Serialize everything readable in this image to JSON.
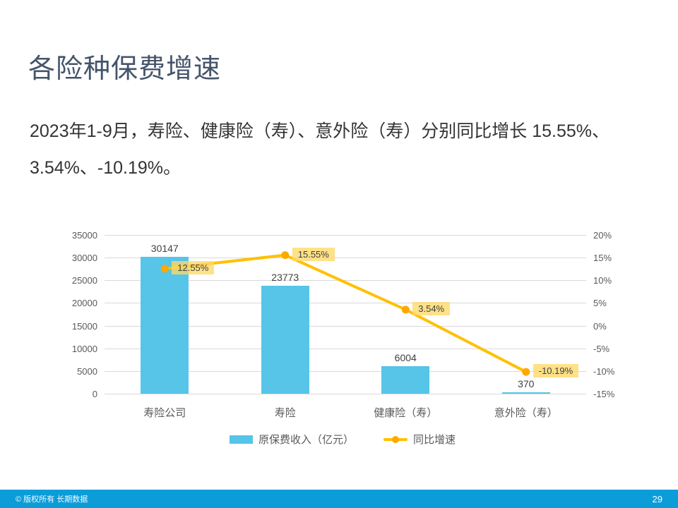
{
  "slide": {
    "title": "各险种保费增速",
    "body_line1": "2023年1-9月，寿险、健康险（寿）、意外险（寿）分别同比增长 15.55%、",
    "body_line2": "3.54%、-10.19%。",
    "footer": {
      "copyright": "© 版权所有 长期数据",
      "page_number": "29"
    }
  },
  "chart_data": {
    "type": "bar",
    "subtype": "bar-with-line-overlay",
    "categories": [
      "寿险公司",
      "寿险",
      "健康险（寿）",
      "意外险（寿）"
    ],
    "series": [
      {
        "name": "原保费收入（亿元）",
        "type": "bar",
        "axis": "left",
        "values": [
          30147,
          23773,
          6004,
          370
        ],
        "value_labels": [
          "30147",
          "23773",
          "6004",
          "370"
        ],
        "color": "#56C5E8"
      },
      {
        "name": "同比增速",
        "type": "line",
        "axis": "right",
        "values": [
          12.55,
          15.55,
          3.54,
          -10.19
        ],
        "value_labels": [
          "12.55%",
          "15.55%",
          "3.54%",
          "-10.19%"
        ],
        "color": "#FFC000",
        "marker_color": "#FFA800",
        "label_bg": "#FFD966"
      }
    ],
    "left_axis": {
      "min": 0,
      "max": 35000,
      "step": 5000,
      "ticks": [
        "0",
        "5000",
        "10000",
        "15000",
        "20000",
        "25000",
        "30000",
        "35000"
      ]
    },
    "right_axis": {
      "min": -15,
      "max": 20,
      "step": 5,
      "ticks": [
        "-15%",
        "-10%",
        "-5%",
        "0%",
        "5%",
        "10%",
        "15%",
        "20%"
      ]
    },
    "grid": true,
    "legend_position": "bottom"
  },
  "colors": {
    "title": "#44546A",
    "bar": "#56C5E8",
    "line": "#FFC000",
    "marker": "#FFA800",
    "label_bg": "rgba(255,217,102,0.78)",
    "footer_bar": "#0C9DD9",
    "gridline": "#D9D9D9",
    "axis_text": "#595959"
  }
}
